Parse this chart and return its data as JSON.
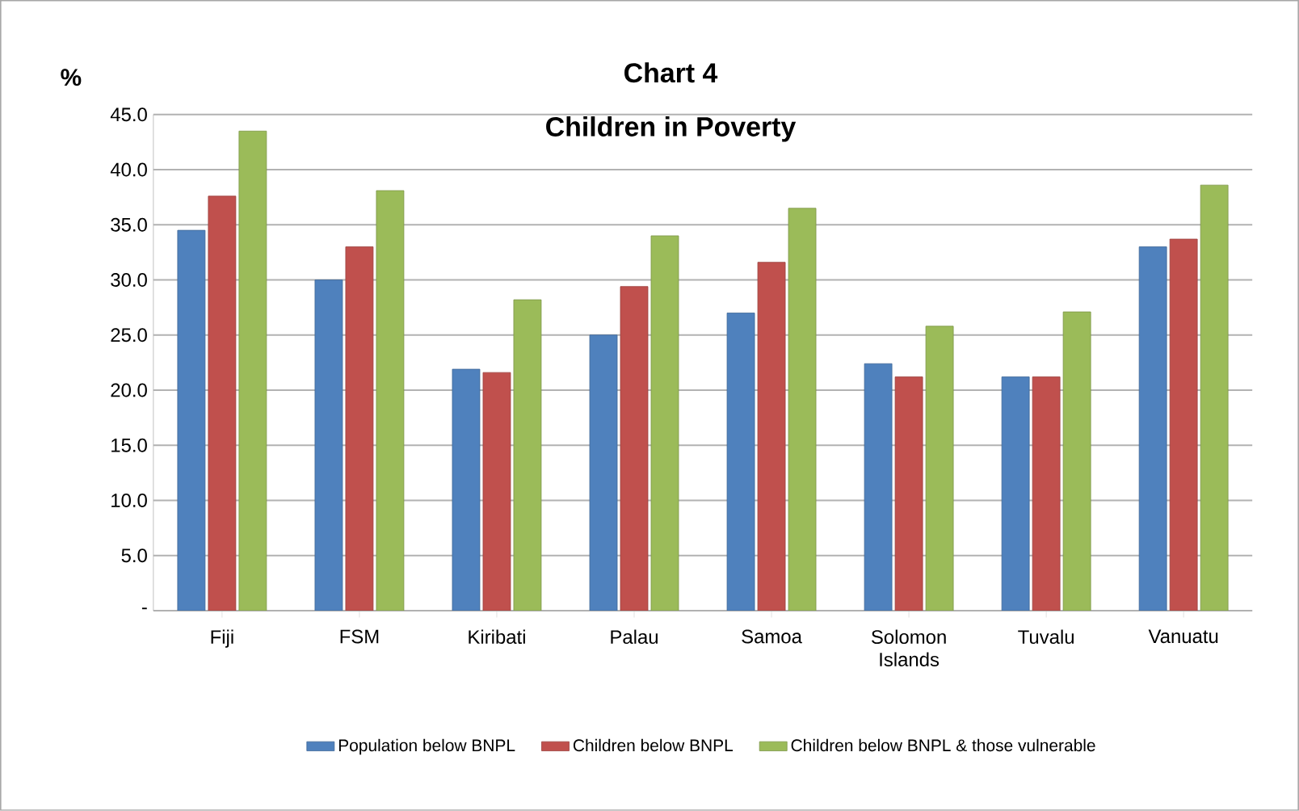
{
  "chart_data": {
    "type": "bar",
    "title": "Chart 4",
    "subtitle": "Children in Poverty",
    "ylabel": "%",
    "categories": [
      "Fiji",
      "FSM",
      "Kiribati",
      "Palau",
      "Samoa",
      "Solomon Islands",
      "Tuvalu",
      "Vanuatu"
    ],
    "series": [
      {
        "name": "Population below BNPL",
        "color": "#4f81bd",
        "values": [
          34.5,
          30.0,
          21.9,
          25.0,
          27.0,
          22.4,
          21.2,
          33.0
        ]
      },
      {
        "name": "Children below BNPL",
        "color": "#c0504d",
        "values": [
          37.6,
          33.0,
          21.6,
          29.4,
          31.6,
          21.2,
          21.2,
          33.7
        ]
      },
      {
        "name": "Children below BNPL & those vulnerable",
        "color": "#9bbb59",
        "values": [
          43.5,
          38.1,
          28.2,
          34.0,
          36.5,
          25.8,
          27.1,
          38.6
        ]
      }
    ],
    "ylim": [
      0,
      45
    ],
    "yticks": [
      {
        "value": 0,
        "label": "-"
      },
      {
        "value": 5,
        "label": "5.0"
      },
      {
        "value": 10,
        "label": "10.0"
      },
      {
        "value": 15,
        "label": "15.0"
      },
      {
        "value": 20,
        "label": "20.0"
      },
      {
        "value": 25,
        "label": "25.0"
      },
      {
        "value": 30,
        "label": "30.0"
      },
      {
        "value": 35,
        "label": "35.0"
      },
      {
        "value": 40,
        "label": "40.0"
      },
      {
        "value": 45,
        "label": "45.0"
      }
    ],
    "grid": "y",
    "legend": "bottom"
  }
}
